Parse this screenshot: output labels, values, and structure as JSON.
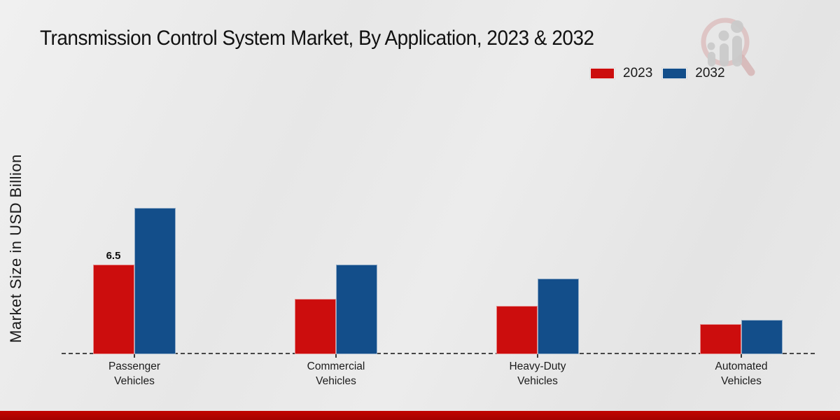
{
  "title": "Transmission Control System Market, By Application, 2023 & 2032",
  "legend": {
    "items": [
      {
        "label": "2023",
        "color": "#cc0d0d"
      },
      {
        "label": "2032",
        "color": "#134e8a"
      }
    ],
    "position": "top-right"
  },
  "branding": {
    "logo_icon": "magnifier-bar-chart-logo",
    "bottom_bar_color": "#b30300"
  },
  "chart_data": {
    "type": "bar",
    "title": "Transmission Control System Market, By Application, 2023 & 2032",
    "xlabel": "",
    "ylabel": "Market Size in USD Billion",
    "categories": [
      "Passenger Vehicles",
      "Commercial Vehicles",
      "Heavy-Duty Vehicles",
      "Automated Vehicles"
    ],
    "series": [
      {
        "name": "2023",
        "color": "#cc0d0d",
        "values": [
          6.5,
          4.0,
          3.5,
          2.2
        ],
        "data_labels": [
          "6.5",
          "",
          "",
          ""
        ]
      },
      {
        "name": "2032",
        "color": "#134e8a",
        "values": [
          10.6,
          6.5,
          5.5,
          2.5
        ],
        "data_labels": [
          "",
          "",
          "",
          ""
        ]
      }
    ],
    "ylim": [
      0,
      11
    ],
    "grid": false,
    "axis_style": "dashed baseline only, no y-axis ticks",
    "legend_position": "top-right"
  }
}
